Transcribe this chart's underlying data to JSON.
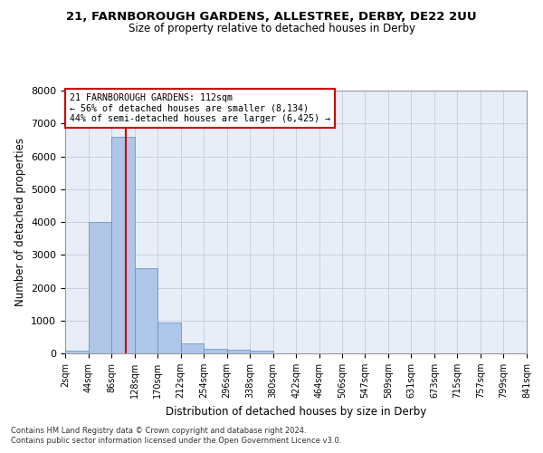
{
  "title1": "21, FARNBOROUGH GARDENS, ALLESTREE, DERBY, DE22 2UU",
  "title2": "Size of property relative to detached houses in Derby",
  "xlabel": "Distribution of detached houses by size in Derby",
  "ylabel": "Number of detached properties",
  "annotation_line1": "21 FARNBOROUGH GARDENS: 112sqm",
  "annotation_line2": "← 56% of detached houses are smaller (8,134)",
  "annotation_line3": "44% of semi-detached houses are larger (6,425) →",
  "property_size_sqm": 112,
  "bin_edges": [
    2,
    44,
    86,
    128,
    170,
    212,
    254,
    296,
    338,
    380,
    422,
    464,
    506,
    547,
    589,
    631,
    673,
    715,
    757,
    799,
    841
  ],
  "bar_heights": [
    70,
    4000,
    6600,
    2600,
    950,
    310,
    130,
    100,
    80,
    0,
    0,
    0,
    0,
    0,
    0,
    0,
    0,
    0,
    0,
    0
  ],
  "bar_color": "#aec6e8",
  "bar_edge_color": "#5a8fc0",
  "vline_color": "#cc0000",
  "vline_x": 112,
  "ylim": [
    0,
    8000
  ],
  "yticks": [
    0,
    1000,
    2000,
    3000,
    4000,
    5000,
    6000,
    7000,
    8000
  ],
  "grid_color": "#c8d0e0",
  "background_color": "#e8eef8",
  "box_edge_color": "#cc0000",
  "footnote1": "Contains HM Land Registry data © Crown copyright and database right 2024.",
  "footnote2": "Contains public sector information licensed under the Open Government Licence v3.0."
}
